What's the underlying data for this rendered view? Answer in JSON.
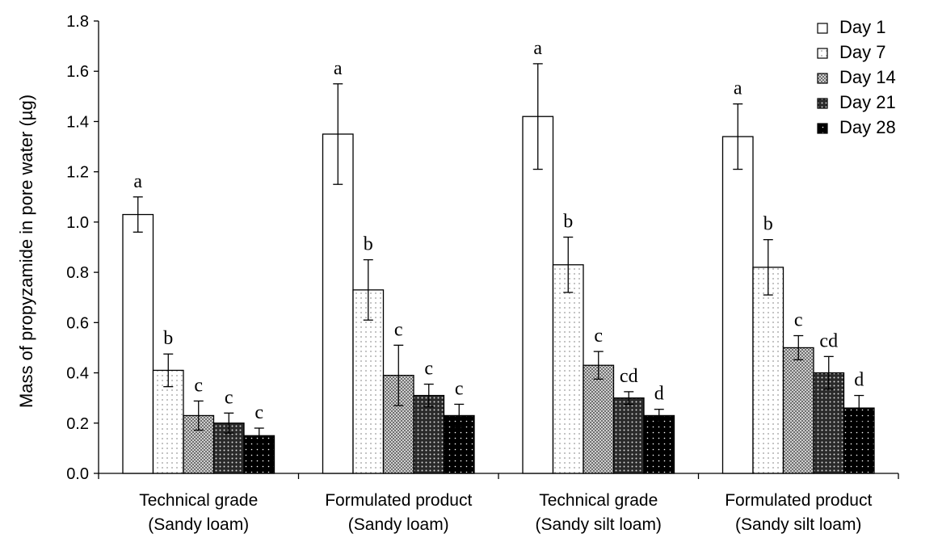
{
  "chart_data": {
    "type": "bar",
    "ylabel": "Mass of propyzamide in pore water (µg)",
    "ylim": [
      0,
      1.8
    ],
    "yticks": [
      "0.0",
      "0.2",
      "0.4",
      "0.6",
      "0.8",
      "1.0",
      "1.2",
      "1.4",
      "1.6",
      "1.8"
    ],
    "categories": [
      [
        "Technical grade",
        "(Sandy loam)"
      ],
      [
        "Formulated product",
        "(Sandy loam)"
      ],
      [
        "Technical grade",
        "(Sandy silt loam)"
      ],
      [
        "Formulated product",
        "(Sandy silt loam)"
      ]
    ],
    "legend_position": "top-right",
    "series": [
      {
        "name": "Day 1",
        "pattern": "white",
        "values": [
          1.03,
          1.35,
          1.42,
          1.34
        ],
        "errors": [
          0.07,
          0.2,
          0.21,
          0.13
        ],
        "labels": [
          "a",
          "a",
          "a",
          "a"
        ]
      },
      {
        "name": "Day 7",
        "pattern": "dots-light",
        "values": [
          0.41,
          0.73,
          0.83,
          0.82
        ],
        "errors": [
          0.065,
          0.12,
          0.11,
          0.11
        ],
        "labels": [
          "b",
          "b",
          "b",
          "b"
        ]
      },
      {
        "name": "Day 14",
        "pattern": "checker",
        "values": [
          0.23,
          0.39,
          0.43,
          0.5
        ],
        "errors": [
          0.058,
          0.12,
          0.055,
          0.048
        ],
        "labels": [
          "c",
          "c",
          "c",
          "c"
        ]
      },
      {
        "name": "Day 21",
        "pattern": "dark-dots",
        "values": [
          0.2,
          0.31,
          0.3,
          0.4
        ],
        "errors": [
          0.04,
          0.045,
          0.025,
          0.065
        ],
        "labels": [
          "c",
          "c",
          "cd",
          "cd"
        ]
      },
      {
        "name": "Day 28",
        "pattern": "black-dots",
        "values": [
          0.15,
          0.23,
          0.23,
          0.26
        ],
        "errors": [
          0.03,
          0.045,
          0.025,
          0.05
        ],
        "labels": [
          "c",
          "c",
          "d",
          "d"
        ]
      }
    ]
  }
}
